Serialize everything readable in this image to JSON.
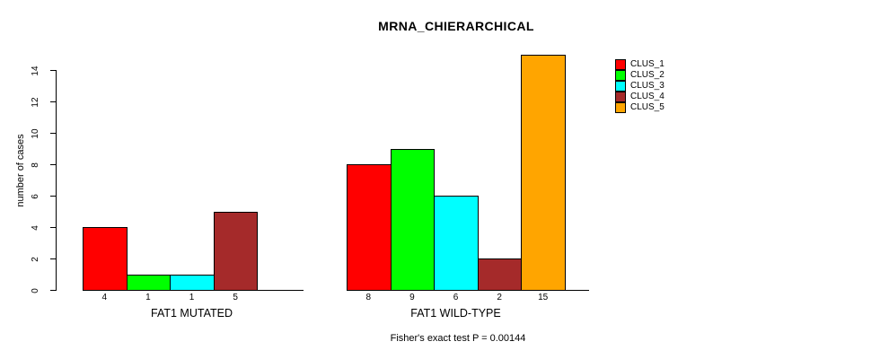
{
  "chart_data": {
    "type": "bar",
    "title": "MRNA_CHIERARCHICAL",
    "ylabel": "number of cases",
    "annotation": "Fisher's exact test P = 0.00144",
    "ylim": [
      0,
      15
    ],
    "yticks": [
      0,
      2,
      4,
      6,
      8,
      10,
      12,
      14
    ],
    "grid": false,
    "legend_position": "right-outside-top",
    "categories": [
      "FAT1 MUTATED",
      "FAT1 WILD-TYPE"
    ],
    "series": [
      {
        "name": "CLUS_1",
        "color": "#FF0000",
        "values": [
          4,
          8
        ]
      },
      {
        "name": "CLUS_2",
        "color": "#00FF00",
        "values": [
          1,
          9
        ]
      },
      {
        "name": "CLUS_3",
        "color": "#00FFFF",
        "values": [
          1,
          6
        ]
      },
      {
        "name": "CLUS_4",
        "color": "#A52A2A",
        "values": [
          5,
          2
        ]
      },
      {
        "name": "CLUS_5",
        "color": "#FFA500",
        "values": [
          0,
          15
        ]
      }
    ],
    "groups": [
      {
        "label": "FAT1 MUTATED",
        "bar_labels": [
          "4",
          "1",
          "1",
          "5",
          ""
        ]
      },
      {
        "label": "FAT1 WILD-TYPE",
        "bar_labels": [
          "8",
          "9",
          "6",
          "2",
          "15"
        ]
      }
    ],
    "colors": {
      "axis": "#000000",
      "text": "#000000",
      "background": "#FFFFFF"
    }
  }
}
